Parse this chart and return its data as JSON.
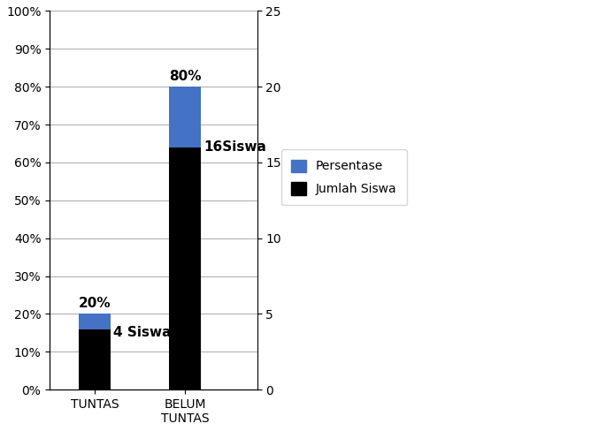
{
  "categories": [
    "TUNTAS",
    "BELUM\nTUNTAS"
  ],
  "persentase": [
    20,
    80
  ],
  "jumlah_siswa_pct": [
    16,
    64
  ],
  "persentase_labels": [
    "20%",
    "80%"
  ],
  "jumlah_labels": [
    "4 Siswa",
    "16Siswa"
  ],
  "bar_color_blue": "#4472C4",
  "bar_color_black": "#000000",
  "ylim_left": [
    0,
    100
  ],
  "ylim_right": [
    0,
    25
  ],
  "yticks_left": [
    0,
    10,
    20,
    30,
    40,
    50,
    60,
    70,
    80,
    90,
    100
  ],
  "yticks_right": [
    0,
    5,
    10,
    15,
    20,
    25
  ],
  "yticklabels_left": [
    "0%",
    "10%",
    "20%",
    "30%",
    "40%",
    "50%",
    "60%",
    "70%",
    "80%",
    "90%",
    "100%"
  ],
  "yticklabels_right": [
    "0",
    "5",
    "10",
    "15",
    "20",
    "25"
  ],
  "legend_labels": [
    "Persentase",
    "Jumlah Siswa"
  ],
  "bar_width": 0.35,
  "background_color": "#ffffff",
  "grid_color": "#aaaaaa",
  "label_fontsize": 11,
  "tick_fontsize": 10
}
